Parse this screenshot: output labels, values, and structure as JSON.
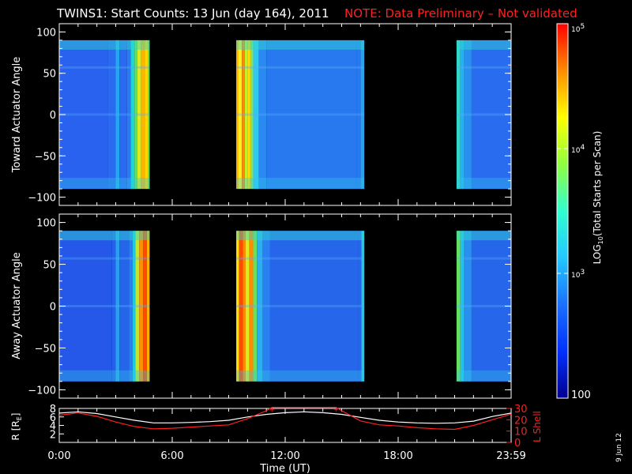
{
  "title": {
    "main": "TWINS1: Start Counts: 13 Jun (day 164), 2011",
    "note": "NOTE: Data Preliminary – Not validated"
  },
  "side_date": "9 Jun 12",
  "colors": {
    "background": "#000000",
    "axes": "#ffffff",
    "note": "#ff2020",
    "lshell": "#ff2020",
    "rline": "#ffffff"
  },
  "chart_data": [
    {
      "type": "heatmap",
      "panel": "top",
      "ylabel": "Toward Actuator Angle",
      "ylim": [
        -110,
        110
      ],
      "yticks": [
        100,
        50,
        0,
        -50,
        -100
      ],
      "y_extent": [
        -90,
        90
      ],
      "x_unit": "hours UT",
      "xlim": [
        0,
        24
      ],
      "segments": [
        {
          "start": 0.0,
          "end": 4.8,
          "profile": [
            [
              0,
              "#2862ee"
            ],
            [
              2.6,
              "#2a6af0"
            ],
            [
              3.0,
              "#22a8ee"
            ],
            [
              3.2,
              "#2a6af0"
            ],
            [
              3.6,
              "#2a7af0"
            ],
            [
              3.8,
              "#1ed4d4"
            ],
            [
              4.0,
              "#66e060"
            ],
            [
              4.15,
              "#d8ec20"
            ],
            [
              4.35,
              "#ffb400"
            ],
            [
              4.55,
              "#ffd800"
            ],
            [
              4.7,
              "#66e060"
            ]
          ]
        },
        {
          "start": 9.4,
          "end": 16.2,
          "profile": [
            [
              9.4,
              "#ffb400"
            ],
            [
              9.5,
              "#ffee20"
            ],
            [
              9.7,
              "#ff8c00"
            ],
            [
              9.85,
              "#c8ec30"
            ],
            [
              10.0,
              "#ffe000"
            ],
            [
              10.15,
              "#88e060"
            ],
            [
              10.3,
              "#30c8ee"
            ],
            [
              10.6,
              "#2a8af0"
            ],
            [
              11.0,
              "#2878f0"
            ],
            [
              15.8,
              "#2878f0"
            ],
            [
              16.0,
              "#2aa0ee"
            ]
          ]
        },
        {
          "start": 21.1,
          "end": 24.0,
          "profile": [
            [
              21.1,
              "#30d8c8"
            ],
            [
              21.3,
              "#2ab0ee"
            ],
            [
              21.5,
              "#2a90f0"
            ],
            [
              21.9,
              "#2a6cf0"
            ]
          ]
        }
      ]
    },
    {
      "type": "heatmap",
      "panel": "middle",
      "ylabel": "Away Actuator Angle",
      "ylim": [
        -110,
        110
      ],
      "yticks": [
        100,
        50,
        0,
        -50,
        -100
      ],
      "y_extent": [
        -90,
        90
      ],
      "x_unit": "hours UT",
      "xlim": [
        0,
        24
      ],
      "segments": [
        {
          "start": 0.0,
          "end": 4.8,
          "profile": [
            [
              0,
              "#2558e8"
            ],
            [
              2.8,
              "#2560ea"
            ],
            [
              3.0,
              "#28a0ee"
            ],
            [
              3.2,
              "#2565ea"
            ],
            [
              3.7,
              "#2a80f0"
            ],
            [
              3.9,
              "#22c8e0"
            ],
            [
              4.05,
              "#bce830"
            ],
            [
              4.25,
              "#ff9000"
            ],
            [
              4.45,
              "#ff4a00"
            ],
            [
              4.65,
              "#ffb000"
            ]
          ]
        },
        {
          "start": 9.4,
          "end": 16.2,
          "profile": [
            [
              9.4,
              "#ffe000"
            ],
            [
              9.55,
              "#ff4a00"
            ],
            [
              9.75,
              "#ff8c00"
            ],
            [
              9.9,
              "#d8ec20"
            ],
            [
              10.1,
              "#ff8c00"
            ],
            [
              10.3,
              "#66e060"
            ],
            [
              10.5,
              "#2ab0ee"
            ],
            [
              10.8,
              "#2a80f0"
            ],
            [
              11.2,
              "#2566ea"
            ],
            [
              15.9,
              "#2566ea"
            ],
            [
              16.05,
              "#30c0e0"
            ]
          ]
        },
        {
          "start": 21.1,
          "end": 24.0,
          "profile": [
            [
              21.1,
              "#66e060"
            ],
            [
              21.3,
              "#28c0e8"
            ],
            [
              21.5,
              "#2a90f0"
            ],
            [
              21.9,
              "#2566ea"
            ]
          ]
        }
      ]
    },
    {
      "type": "line",
      "panel": "bottom",
      "xlabel": "Time (UT)",
      "xticks": [
        "0:00",
        "6:00",
        "12:00",
        "18:00",
        "23:59"
      ],
      "xtick_hours": [
        0,
        6,
        12,
        18,
        24
      ],
      "ylabel": "R [R",
      "ylabel_sub": "E",
      "ylabel_end": "]",
      "ylim": [
        0,
        8
      ],
      "yticks": [
        2,
        4,
        6,
        8
      ],
      "ylabel_right": "L Shell",
      "ylim_right": [
        0,
        30
      ],
      "yticks_right": [
        0,
        10,
        20,
        30
      ],
      "series": [
        {
          "axis": "left",
          "color": "#ffffff",
          "points": [
            [
              0,
              6.9
            ],
            [
              1,
              7.2
            ],
            [
              2,
              6.8
            ],
            [
              3,
              6.0
            ],
            [
              4,
              5.2
            ],
            [
              5,
              4.6
            ],
            [
              6,
              4.6
            ],
            [
              7,
              4.7
            ],
            [
              8,
              4.9
            ],
            [
              9,
              5.2
            ],
            [
              10,
              6.0
            ],
            [
              11,
              6.6
            ],
            [
              12,
              7.0
            ],
            [
              13,
              7.2
            ],
            [
              14,
              7.0
            ],
            [
              15,
              6.6
            ],
            [
              16,
              5.9
            ],
            [
              17,
              5.2
            ],
            [
              18,
              4.8
            ],
            [
              19,
              4.6
            ],
            [
              20,
              4.5
            ],
            [
              21,
              4.6
            ],
            [
              22,
              5.0
            ],
            [
              23,
              6.1
            ],
            [
              24,
              6.9
            ]
          ]
        },
        {
          "axis": "right",
          "color": "#ff2020",
          "points": [
            [
              0,
              24
            ],
            [
              1,
              26
            ],
            [
              2,
              23
            ],
            [
              3,
              18
            ],
            [
              4,
              14
            ],
            [
              5,
              12
            ],
            [
              6,
              12.5
            ],
            [
              7,
              13.5
            ],
            [
              8,
              14.5
            ],
            [
              9,
              15.5
            ],
            [
              10,
              21
            ],
            [
              11,
              28
            ],
            [
              11.3,
              31
            ],
            [
              14.7,
              31
            ],
            [
              15,
              28
            ],
            [
              16,
              19
            ],
            [
              17,
              15.5
            ],
            [
              18,
              14.5
            ],
            [
              19,
              13
            ],
            [
              20,
              12
            ],
            [
              21,
              11.5
            ],
            [
              22,
              15
            ],
            [
              23,
              20
            ],
            [
              24,
              25
            ]
          ]
        }
      ]
    },
    {
      "type": "colorbar",
      "label": "LOG",
      "label_sub": "10",
      "label_end": "(Total Starts per Scan)",
      "tick_labels": [
        "10",
        "10",
        "10",
        "100"
      ],
      "tick_exponents": [
        "5",
        "4",
        "3",
        ""
      ],
      "tick_values": [
        100000,
        10000,
        1000,
        100
      ],
      "range": [
        100,
        100000
      ],
      "scale": "log",
      "colors": [
        "#000090",
        "#0030ff",
        "#1a70ff",
        "#22c8ff",
        "#30ffd0",
        "#90ff40",
        "#ffff00",
        "#ff8c00",
        "#ff0000"
      ]
    }
  ]
}
